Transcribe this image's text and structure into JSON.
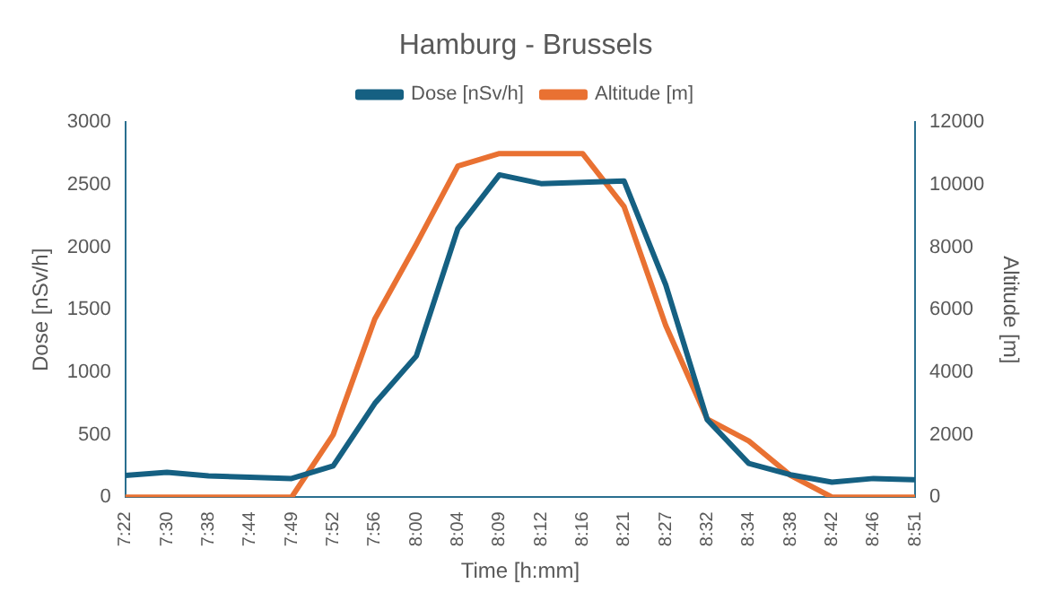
{
  "chart_data": {
    "type": "line",
    "title": "Hamburg - Brussels",
    "xlabel": "Time [h:mm]",
    "ylabel": "Dose [nSv/h]",
    "y2label": "Altitude [m]",
    "categories": [
      "7:22",
      "7:30",
      "7:38",
      "7:44",
      "7:49",
      "7:52",
      "7:56",
      "8:00",
      "8:04",
      "8:09",
      "8:12",
      "8:16",
      "8:21",
      "8:27",
      "8:32",
      "8:34",
      "8:38",
      "8:42",
      "8:46",
      "8:51"
    ],
    "series": [
      {
        "name": "Dose [nSv/h]",
        "color": "#156082",
        "values": [
          175,
          199,
          170,
          160,
          150,
          250,
          750,
          1130,
          2150,
          2580,
          2510,
          2520,
          2530,
          1700,
          620,
          270,
          180,
          120,
          150,
          140
        ]
      },
      {
        "name": "Altitude [m]",
        "color": "#e97132",
        "axis": "y2",
        "values": [
          0,
          0,
          0,
          0,
          0,
          2000,
          5700,
          8100,
          10600,
          11000,
          11000,
          11000,
          9300,
          5500,
          2500,
          1800,
          700,
          0,
          0,
          0
        ]
      }
    ],
    "ylim": [
      0,
      3000
    ],
    "yticks": [
      0,
      500,
      1000,
      1500,
      2000,
      2500,
      3000
    ],
    "y2lim": [
      0,
      12000
    ],
    "y2ticks": [
      0,
      2000,
      4000,
      6000,
      8000,
      10000,
      12000
    ],
    "grid": false,
    "legend": "top",
    "marker": "none",
    "line_style": "solid"
  }
}
